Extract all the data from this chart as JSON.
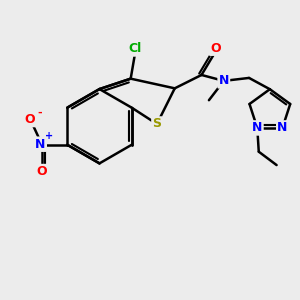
{
  "background_color": "#ececec",
  "bond_color": "#000000",
  "bond_width": 1.8,
  "atom_colors": {
    "C": "#000000",
    "N": "#0000ff",
    "O": "#ff0000",
    "S": "#999900",
    "Cl": "#00aa00"
  },
  "fig_width": 3.0,
  "fig_height": 3.0,
  "dpi": 100,
  "xlim": [
    0,
    10
  ],
  "ylim": [
    0,
    10
  ]
}
